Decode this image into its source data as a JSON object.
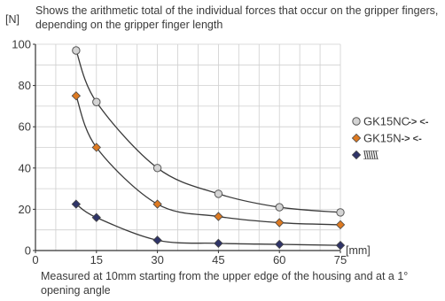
{
  "description": "Shows the arithmetic total of the individual forces that occur on the gripper fingers, depending on the gripper finger length",
  "footnote": "Measured at 10mm starting from the upper edge of the housing and at a 1° opening angle",
  "chart_data": {
    "type": "line",
    "ylabel": "[N]",
    "xlabel": "[mm]",
    "xlim": [
      0,
      75
    ],
    "ylim": [
      0,
      100
    ],
    "xticks": [
      0,
      15,
      30,
      45,
      60,
      75
    ],
    "yticks": [
      0,
      20,
      40,
      60,
      80,
      100
    ],
    "grid": true,
    "legend_position": "right",
    "series": [
      {
        "name": "GK15NC",
        "marker": "circle",
        "marker_color": "#d4d4d4",
        "arrows": "-> <-",
        "points": [
          [
            10,
            97
          ],
          [
            15,
            72
          ],
          [
            30,
            40
          ],
          [
            45,
            27.5
          ],
          [
            60,
            21
          ],
          [
            75,
            18.5
          ]
        ]
      },
      {
        "name": "GK15N",
        "marker": "diamond",
        "marker_color": "#dd7a22",
        "arrows": "-> <-",
        "points": [
          [
            10,
            75
          ],
          [
            15,
            50
          ],
          [
            30,
            22.5
          ],
          [
            45,
            16.5
          ],
          [
            60,
            13.5
          ],
          [
            75,
            12.5
          ]
        ]
      },
      {
        "name": "",
        "marker": "diamond",
        "marker_color": "#2f3468",
        "symbol": "spring-icon",
        "points": [
          [
            10,
            22.5
          ],
          [
            15,
            16
          ],
          [
            30,
            5
          ],
          [
            45,
            3.5
          ],
          [
            60,
            3
          ],
          [
            75,
            2.5
          ]
        ]
      }
    ]
  }
}
